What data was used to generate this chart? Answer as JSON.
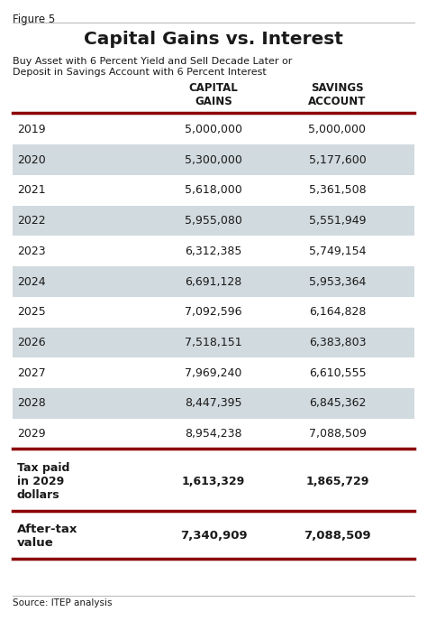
{
  "figure_label": "Figure 5",
  "title": "Capital Gains vs. Interest",
  "subtitle_line1": "Buy Asset with 6 Percent Yield and Sell Decade Later or",
  "subtitle_line2": "Deposit in Savings Account with 6 Percent Interest",
  "col_headers": [
    "CAPITAL\nGAINS",
    "SAVINGS\nACCOUNT"
  ],
  "rows": [
    [
      "2019",
      "5,000,000",
      "5,000,000"
    ],
    [
      "2020",
      "5,300,000",
      "5,177,600"
    ],
    [
      "2021",
      "5,618,000",
      "5,361,508"
    ],
    [
      "2022",
      "5,955,080",
      "5,551,949"
    ],
    [
      "2023",
      "6,312,385",
      "5,749,154"
    ],
    [
      "2024",
      "6,691,128",
      "5,953,364"
    ],
    [
      "2025",
      "7,092,596",
      "6,164,828"
    ],
    [
      "2026",
      "7,518,151",
      "6,383,803"
    ],
    [
      "2027",
      "7,969,240",
      "6,610,555"
    ],
    [
      "2028",
      "8,447,395",
      "6,845,362"
    ],
    [
      "2029",
      "8,954,238",
      "7,088,509"
    ]
  ],
  "shaded_rows": [
    1,
    3,
    5,
    7,
    9
  ],
  "tax_row_label": "Tax paid\nin 2029\ndollars",
  "tax_values": [
    "1,613,329",
    "1,865,729"
  ],
  "aftertax_row_label": "After-tax\nvalue",
  "aftertax_values": [
    "7,340,909",
    "7,088,509"
  ],
  "source": "Source: ITEP analysis",
  "bg_color": "#ffffff",
  "shaded_color": "#a8b8c0",
  "dark_red": "#8b0000",
  "text_color": "#1a1a1a",
  "fig_label_line_color": "#bbbbbb"
}
